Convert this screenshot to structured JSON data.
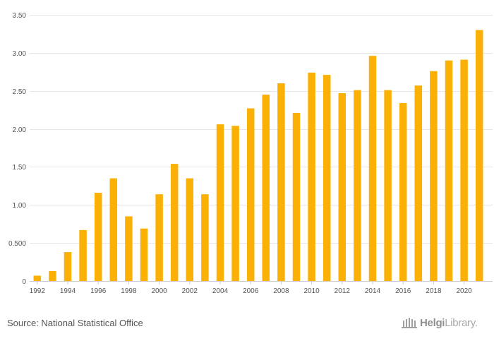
{
  "chart_data": {
    "type": "bar",
    "categories": [
      "1992",
      "1993",
      "1994",
      "1995",
      "1996",
      "1997",
      "1998",
      "1999",
      "2000",
      "2001",
      "2002",
      "2003",
      "2004",
      "2005",
      "2006",
      "2007",
      "2008",
      "2009",
      "2010",
      "2011",
      "2012",
      "2013",
      "2014",
      "2015",
      "2016",
      "2017",
      "2018",
      "2019",
      "2020",
      "2021"
    ],
    "values": [
      0.07,
      0.13,
      0.38,
      0.67,
      1.16,
      1.35,
      0.85,
      0.69,
      1.14,
      1.54,
      1.35,
      1.14,
      2.06,
      2.04,
      2.27,
      2.45,
      2.6,
      2.21,
      2.74,
      2.71,
      2.47,
      2.51,
      2.96,
      2.51,
      2.34,
      2.57,
      2.76,
      2.9,
      2.91,
      3.3
    ],
    "x_tick_labels": [
      "1992",
      "1994",
      "1996",
      "1998",
      "2000",
      "2002",
      "2004",
      "2006",
      "2008",
      "2010",
      "2012",
      "2014",
      "2016",
      "2018",
      "2020"
    ],
    "y_ticks": [
      0,
      0.5,
      1.0,
      1.5,
      2.0,
      2.5,
      3.0,
      3.5
    ],
    "y_tick_labels": [
      "0",
      "0.500",
      "1.00",
      "1.50",
      "2.00",
      "2.50",
      "3.00",
      "3.50"
    ],
    "ylim": [
      0,
      3.5
    ],
    "title": "",
    "xlabel": "",
    "ylabel": "",
    "grid": true,
    "bar_color": "#FAB005"
  },
  "footer": {
    "source": "Source: National Statistical Office",
    "logo_bold": "Helgi",
    "logo_rest": "Library."
  }
}
